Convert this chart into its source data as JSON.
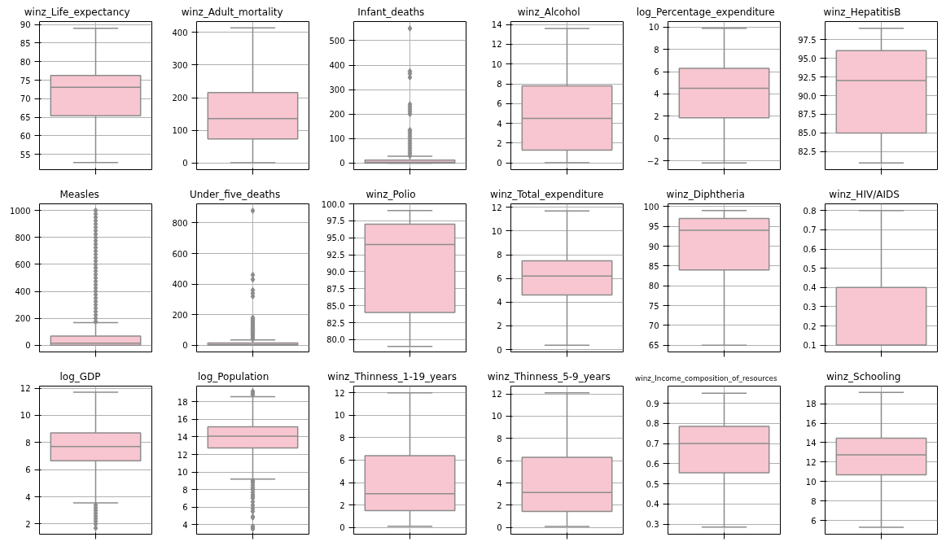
{
  "chart_data": [
    {
      "type": "box",
      "title": "winz_Life_expectancy",
      "categories": [
        null
      ],
      "series": [
        {
          "color": "#f8c6d0",
          "boxes": [
            {
              "low": 52.8,
              "q1": 65.4,
              "median": 73.1,
              "q3": 76.3,
              "high": 89.0
            }
          ]
        }
      ],
      "ylim": [
        50.9,
        90.8
      ],
      "yticks": [
        55,
        60,
        65,
        70,
        75,
        80,
        85,
        90
      ],
      "grid": true,
      "tick_labels": "y"
    },
    {
      "type": "box",
      "title": "winz_Adult_mortality",
      "categories": [
        null
      ],
      "series": [
        {
          "color": "#f8c6d0",
          "boxes": [
            {
              "low": 1,
              "q1": 74,
              "median": 136,
              "q3": 216,
              "high": 414
            }
          ]
        }
      ],
      "ylim": [
        -20,
        433
      ],
      "yticks": [
        0,
        100,
        200,
        300,
        400
      ],
      "grid": true,
      "tick_labels": "y"
    },
    {
      "type": "box",
      "title": "Infant_deaths",
      "categories": [
        null
      ],
      "marker": "diamond",
      "series": [
        {
          "color": "#f8c6d0",
          "boxes": [
            {
              "low": 0,
              "q1": 0,
              "median": 3,
              "q3": 12,
              "high": 28,
              "outliers": [
                30,
                40,
                50,
                60,
                70,
                80,
                90,
                100,
                110,
                120,
                130,
                135,
                200,
                210,
                220,
                230,
                240,
                350,
                365,
                375,
                550
              ]
            }
          ]
        }
      ],
      "ylim": [
        -27,
        578
      ],
      "yticks": [
        0,
        100,
        200,
        300,
        400,
        500
      ],
      "grid": true,
      "tick_labels": "y"
    },
    {
      "type": "box",
      "title": "winz_Alcohol",
      "categories": [
        null
      ],
      "series": [
        {
          "color": "#f8c6d0",
          "boxes": [
            {
              "low": 0.01,
              "q1": 1.3,
              "median": 4.5,
              "q3": 7.8,
              "high": 13.6
            }
          ]
        }
      ],
      "ylim": [
        -0.68,
        14.3
      ],
      "yticks": [
        0,
        2,
        4,
        6,
        8,
        10,
        12,
        14
      ],
      "grid": true,
      "tick_labels": "y"
    },
    {
      "type": "box",
      "title": "log_Percentage_expenditure",
      "categories": [
        null
      ],
      "series": [
        {
          "color": "#f8c6d0",
          "boxes": [
            {
              "low": -2.2,
              "q1": 1.85,
              "median": 4.5,
              "q3": 6.3,
              "high": 9.9
            }
          ]
        }
      ],
      "ylim": [
        -2.8,
        10.5
      ],
      "yticks": [
        -2,
        0,
        2,
        4,
        6,
        8,
        10
      ],
      "grid": true,
      "tick_labels": "y"
    },
    {
      "type": "box",
      "title": "winz_HepatitisB",
      "categories": [
        null
      ],
      "series": [
        {
          "color": "#f8c6d0",
          "boxes": [
            {
              "low": 81,
              "q1": 85,
              "median": 92,
              "q3": 96,
              "high": 99
            }
          ]
        }
      ],
      "ylim": [
        80.1,
        99.9
      ],
      "yticks": [
        82.5,
        {
          "value": 85,
          "label": "85.0"
        },
        92.5,
        {
          "value": 90,
          "label": "90.0"
        },
        87.5,
        {
          "value": 95,
          "label": "95.0"
        },
        97.5
      ],
      "grid": true,
      "tick_labels": "y"
    },
    {
      "type": "box",
      "title": "Measles",
      "categories": [
        null
      ],
      "marker": "diamond",
      "series": [
        {
          "color": "#f8c6d0",
          "boxes": [
            {
              "low": 0,
              "q1": 0,
              "median": 15,
              "q3": 68,
              "high": 168,
              "outliers": [
                175,
                200,
                225,
                250,
                275,
                300,
                325,
                350,
                375,
                400,
                425,
                450,
                475,
                500,
                525,
                550,
                575,
                600,
                625,
                650,
                675,
                700,
                725,
                750,
                775,
                800,
                825,
                850,
                875,
                900,
                925,
                950,
                975,
                1000
              ]
            }
          ]
        }
      ],
      "ylim": [
        -50,
        1050
      ],
      "yticks": [
        0,
        200,
        400,
        600,
        800,
        1000
      ],
      "grid": true,
      "tick_labels": "y"
    },
    {
      "type": "box",
      "title": "Under_five_deaths",
      "categories": [
        null
      ],
      "marker": "diamond",
      "series": [
        {
          "color": "#f8c6d0",
          "boxes": [
            {
              "low": 0,
              "q1": 0,
              "median": 4,
              "q3": 15,
              "high": 35,
              "outliers": [
                40,
                50,
                60,
                70,
                80,
                90,
                100,
                110,
                120,
                130,
                140,
                150,
                160,
                170,
                180,
                320,
                340,
                360,
                430,
                460,
                880
              ]
            }
          ]
        }
      ],
      "ylim": [
        -44,
        925
      ],
      "yticks": [
        0,
        200,
        400,
        600,
        800
      ],
      "grid": true,
      "tick_labels": "y"
    },
    {
      "type": "box",
      "title": "winz_Polio",
      "categories": [
        null
      ],
      "series": [
        {
          "color": "#f8c6d0",
          "boxes": [
            {
              "low": 79,
              "q1": 84,
              "median": 94,
              "q3": 97,
              "high": 99
            }
          ]
        }
      ],
      "ylim": [
        78.2,
        100
      ],
      "yticks": [
        {
          "value": 80,
          "label": "80.0"
        },
        82.5,
        {
          "value": 85,
          "label": "85.0"
        },
        87.5,
        {
          "value": 90,
          "label": "90.0"
        },
        92.5,
        {
          "value": 95,
          "label": "95.0"
        },
        97.5,
        {
          "value": 100,
          "label": "100.0"
        }
      ],
      "grid": true,
      "tick_labels": "y"
    },
    {
      "type": "box",
      "title": "winz_Total_expenditure",
      "categories": [
        null
      ],
      "series": [
        {
          "color": "#f8c6d0",
          "boxes": [
            {
              "low": 0.37,
              "q1": 4.6,
              "median": 6.2,
              "q3": 7.5,
              "high": 11.7
            }
          ]
        }
      ],
      "ylim": [
        -0.2,
        12.3
      ],
      "yticks": [
        0,
        2,
        4,
        6,
        8,
        10,
        12
      ],
      "grid": true,
      "tick_labels": "y"
    },
    {
      "type": "box",
      "title": "winz_Diphtheria",
      "categories": [
        null
      ],
      "series": [
        {
          "color": "#f8c6d0",
          "boxes": [
            {
              "low": 65,
              "q1": 84,
              "median": 94,
              "q3": 97,
              "high": 99
            }
          ]
        }
      ],
      "ylim": [
        63.3,
        100.7
      ],
      "yticks": [
        65,
        70,
        75,
        80,
        85,
        90,
        95,
        100
      ],
      "grid": true,
      "tick_labels": "y"
    },
    {
      "type": "box",
      "title": "winz_HIV/AIDS",
      "categories": [
        null
      ],
      "series": [
        {
          "color": "#f8c6d0",
          "boxes": [
            {
              "low": 0.1,
              "q1": 0.1,
              "median": 0.1,
              "q3": 0.4,
              "high": 0.8
            }
          ]
        }
      ],
      "ylim": [
        0.065,
        0.835
      ],
      "yticks": [
        0.1,
        0.2,
        0.3,
        0.4,
        0.5,
        0.6,
        0.7,
        0.8
      ],
      "grid": true,
      "tick_labels": "y"
    },
    {
      "type": "box",
      "title": "log_GDP",
      "categories": [
        null
      ],
      "marker": "diamond",
      "series": [
        {
          "color": "#f8c6d0",
          "boxes": [
            {
              "low": 3.55,
              "q1": 6.65,
              "median": 7.7,
              "q3": 8.7,
              "high": 11.7,
              "outliers": [
                3.4,
                3.2,
                3.0,
                2.8,
                2.6,
                2.4,
                2.2,
                2.0,
                1.7
              ]
            }
          ]
        }
      ],
      "ylim": [
        1.25,
        12.15
      ],
      "yticks": [
        2,
        4,
        6,
        8,
        10,
        12
      ],
      "grid": true,
      "tick_labels": "y"
    },
    {
      "type": "box",
      "title": "log_Population",
      "categories": [
        null
      ],
      "marker": "diamond",
      "series": [
        {
          "color": "#f8c6d0",
          "boxes": [
            {
              "low": 9.2,
              "q1": 12.75,
              "median": 14.1,
              "q3": 15.15,
              "high": 18.6,
              "outliers": [
                18.8,
                19.0,
                19.2,
                9.0,
                8.8,
                8.5,
                8.2,
                8.0,
                7.7,
                7.4,
                7.2,
                7.0,
                6.6,
                6.2,
                5.8,
                5.5,
                4.9,
                4.8,
                3.8,
                3.6,
                3.5
              ]
            }
          ]
        }
      ],
      "ylim": [
        2.9,
        19.8
      ],
      "yticks": [
        4,
        6,
        8,
        10,
        12,
        14,
        16,
        18
      ],
      "grid": true,
      "tick_labels": "y"
    },
    {
      "type": "box",
      "title": "winz_Thinness_1-19_years",
      "categories": [
        null
      ],
      "series": [
        {
          "color": "#f8c6d0",
          "boxes": [
            {
              "low": 0.1,
              "q1": 1.5,
              "median": 3.0,
              "q3": 6.4,
              "high": 12.0
            }
          ]
        }
      ],
      "ylim": [
        -0.6,
        12.6
      ],
      "yticks": [
        0,
        2,
        4,
        6,
        8,
        10,
        12
      ],
      "grid": true,
      "tick_labels": "y"
    },
    {
      "type": "box",
      "title": "winz_Thinness_5-9_years",
      "categories": [
        null
      ],
      "series": [
        {
          "color": "#f8c6d0",
          "boxes": [
            {
              "low": 0.1,
              "q1": 1.45,
              "median": 3.15,
              "q3": 6.3,
              "high": 12.1
            }
          ]
        }
      ],
      "ylim": [
        -0.6,
        12.7
      ],
      "yticks": [
        0,
        2,
        4,
        6,
        8,
        10,
        12
      ],
      "grid": true,
      "tick_labels": "y"
    },
    {
      "type": "box",
      "title": "winz_Income_composition_of_resources",
      "categories": [
        null
      ],
      "series": [
        {
          "color": "#f8c6d0",
          "boxes": [
            {
              "low": 0.285,
              "q1": 0.555,
              "median": 0.7,
              "q3": 0.785,
              "high": 0.95
            }
          ]
        }
      ],
      "ylim": [
        0.25,
        0.985
      ],
      "yticks": [
        0.3,
        0.4,
        0.5,
        0.6,
        0.7,
        0.8,
        0.9
      ],
      "grid": true,
      "tick_labels": "y"
    },
    {
      "type": "box",
      "title": "winz_Schooling",
      "categories": [
        null
      ],
      "series": [
        {
          "color": "#f8c6d0",
          "boxes": [
            {
              "low": 5.3,
              "q1": 10.7,
              "median": 12.75,
              "q3": 14.45,
              "high": 19.15
            }
          ]
        }
      ],
      "ylim": [
        4.6,
        19.8
      ],
      "yticks": [
        6,
        8,
        10,
        12,
        14,
        16,
        18
      ],
      "grid": true,
      "tick_labels": "y"
    }
  ]
}
